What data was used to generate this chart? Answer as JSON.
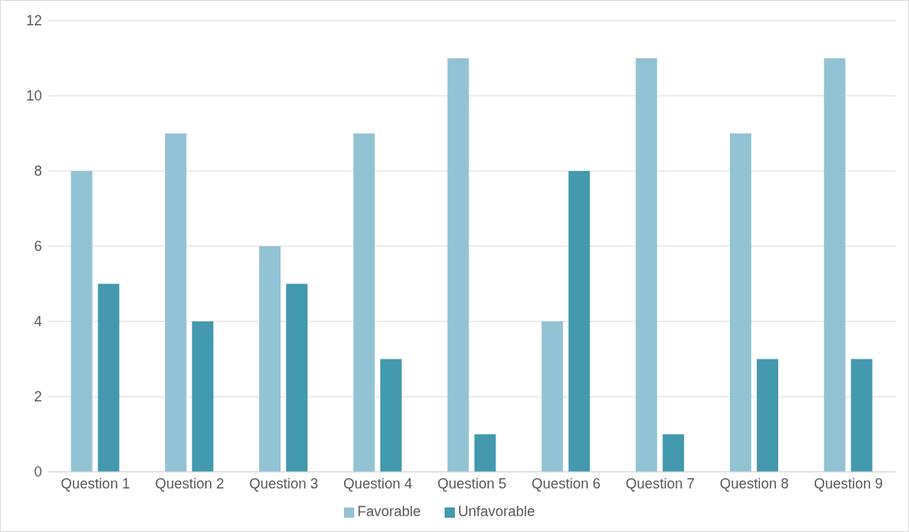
{
  "chart_data": {
    "type": "bar",
    "categories": [
      "Question 1",
      "Question 2",
      "Question 3",
      "Question 4",
      "Question 5",
      "Question 6",
      "Question 7",
      "Question 8",
      "Question 9"
    ],
    "series": [
      {
        "name": "Favorable",
        "color": "#92c3d4",
        "values": [
          8,
          9,
          6,
          9,
          11,
          4,
          11,
          9,
          11
        ]
      },
      {
        "name": "Unfavorable",
        "color": "#4399ae",
        "values": [
          5,
          4,
          5,
          3,
          1,
          8,
          1,
          3,
          3
        ]
      }
    ],
    "ylim": [
      0,
      12
    ],
    "yticks": [
      0,
      2,
      4,
      6,
      8,
      10,
      12
    ],
    "grid": "y",
    "legend": "bottom"
  }
}
